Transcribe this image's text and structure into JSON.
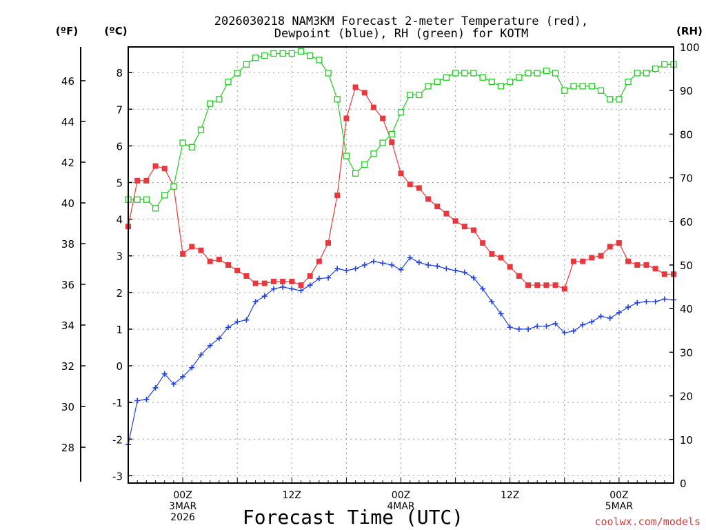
{
  "title_line1": "2026030218 NAM3KM Forecast 2-meter Temperature (red),",
  "title_line2": "Dewpoint (blue), RH (green) for KOTM",
  "unit_f": "(ºF)",
  "unit_c": "(ºC)",
  "unit_rh": "(RH)",
  "xlabel": "Forecast Time (UTC)",
  "credit": "coolwx.com/models",
  "colors": {
    "temperature": "#e8383d",
    "dewpoint": "#2244dd",
    "rh": "#22cc22",
    "grid": "#9a9a9a",
    "credit": "#d03b3b"
  },
  "chart_data": {
    "type": "line",
    "title": "2026030218 NAM3KM Forecast 2-meter Temperature (red), Dewpoint (blue), RH (green) for KOTM",
    "xlabel": "Forecast Time (UTC)",
    "x_unit": "forecast hour",
    "x": [
      18,
      19,
      20,
      21,
      22,
      23,
      24,
      25,
      26,
      27,
      28,
      29,
      30,
      31,
      32,
      33,
      34,
      35,
      36,
      37,
      38,
      39,
      40,
      41,
      42,
      43,
      44,
      45,
      46,
      47,
      48,
      49,
      50,
      51,
      52,
      53,
      54,
      55,
      56,
      57,
      58,
      59,
      60,
      61,
      62,
      63,
      64,
      65,
      66,
      67,
      68,
      69,
      70,
      71,
      72,
      73,
      74,
      75,
      76,
      77,
      78
    ],
    "x_ticks": [
      {
        "x": 24,
        "lines": [
          "00Z",
          "3MAR",
          "2026"
        ]
      },
      {
        "x": 36,
        "lines": [
          "12Z"
        ]
      },
      {
        "x": 48,
        "lines": [
          "00Z",
          "4MAR"
        ]
      },
      {
        "x": 60,
        "lines": [
          "12Z"
        ]
      },
      {
        "x": 72,
        "lines": [
          "00Z",
          "5MAR"
        ]
      }
    ],
    "xlim": [
      18,
      78
    ],
    "axes": {
      "left_outer": {
        "label": "(ºF)",
        "ticks": [
          28,
          30,
          32,
          34,
          36,
          38,
          40,
          42,
          44,
          46
        ]
      },
      "left_inner": {
        "label": "(ºC)",
        "ylim": [
          -3.2,
          8.7
        ],
        "ticks": [
          -3,
          -2,
          -1,
          0,
          1,
          2,
          3,
          4,
          5,
          6,
          7,
          8
        ]
      },
      "right": {
        "label": "(RH)",
        "ylim": [
          0,
          100
        ],
        "ticks": [
          0,
          10,
          20,
          30,
          40,
          50,
          60,
          70,
          80,
          90,
          100
        ]
      }
    },
    "grid": true,
    "series": [
      {
        "name": "2-meter Temperature",
        "color": "#e8383d",
        "axis": "left_inner",
        "marker": "filled-square",
        "values": [
          3.8,
          5.05,
          5.05,
          5.45,
          5.38,
          4.9,
          3.05,
          3.25,
          3.15,
          2.85,
          2.9,
          2.75,
          2.6,
          2.45,
          2.25,
          2.25,
          2.3,
          2.3,
          2.3,
          2.2,
          2.45,
          2.85,
          3.35,
          4.65,
          6.75,
          7.6,
          7.45,
          7.05,
          6.75,
          6.1,
          5.25,
          4.95,
          4.85,
          4.55,
          4.35,
          4.15,
          3.95,
          3.8,
          3.7,
          3.35,
          3.05,
          2.95,
          2.7,
          2.45,
          2.2,
          2.2,
          2.2,
          2.2,
          2.1,
          2.85,
          2.85,
          2.95,
          3.0,
          3.25,
          3.35,
          2.85,
          2.75,
          2.75,
          2.65,
          2.5,
          2.5
        ]
      },
      {
        "name": "Dewpoint",
        "color": "#2244dd",
        "axis": "left_inner",
        "marker": "plus",
        "values": [
          -2.15,
          -0.95,
          -0.92,
          -0.6,
          -0.22,
          -0.5,
          -0.3,
          -0.05,
          0.3,
          0.55,
          0.75,
          1.05,
          1.2,
          1.25,
          1.75,
          1.9,
          2.1,
          2.15,
          2.1,
          2.05,
          2.2,
          2.38,
          2.4,
          2.65,
          2.6,
          2.65,
          2.75,
          2.85,
          2.8,
          2.75,
          2.62,
          2.95,
          2.82,
          2.75,
          2.72,
          2.65,
          2.6,
          2.55,
          2.4,
          2.1,
          1.75,
          1.42,
          1.05,
          1.0,
          1.0,
          1.08,
          1.08,
          1.15,
          0.9,
          0.95,
          1.12,
          1.2,
          1.35,
          1.3,
          1.45,
          1.6,
          1.72,
          1.75,
          1.75,
          1.82,
          1.8
        ]
      },
      {
        "name": "RH",
        "color": "#22cc22",
        "axis": "right",
        "marker": "open-square",
        "values": [
          65,
          65,
          65,
          63,
          66,
          68,
          78,
          77,
          81,
          87,
          88,
          92,
          94,
          96,
          97.5,
          98,
          98.5,
          98.5,
          98.5,
          99,
          98,
          97,
          94,
          88,
          75,
          71,
          73,
          75.5,
          78,
          80,
          85,
          89,
          89,
          91,
          92,
          93,
          94,
          94,
          94,
          93,
          92,
          91,
          92,
          93,
          94,
          94,
          94.5,
          94,
          90,
          91,
          91,
          91,
          90,
          88,
          88,
          92,
          94,
          94,
          95,
          96,
          96
        ]
      }
    ]
  }
}
